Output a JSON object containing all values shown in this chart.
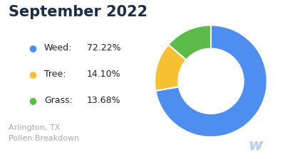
{
  "title": "September 2022",
  "title_color": "#1a2e4a",
  "title_fontsize": 15,
  "title_fontweight": "bold",
  "subtitle": "Arlington, TX\nPollen Breakdown",
  "subtitle_color": "#aaaaaa",
  "subtitle_fontsize": 8,
  "watermark": "w",
  "watermark_color": "#b8ccee",
  "labels": [
    "Weed",
    "Tree",
    "Grass"
  ],
  "values": [
    72.22,
    14.1,
    13.68
  ],
  "colors": [
    "#4d8ef0",
    "#f5c132",
    "#5dbb4a"
  ],
  "legend_label_color": "#222222",
  "legend_fontsize": 9,
  "background_color": "#ffffff",
  "donut_width": 0.42,
  "startangle": 90
}
